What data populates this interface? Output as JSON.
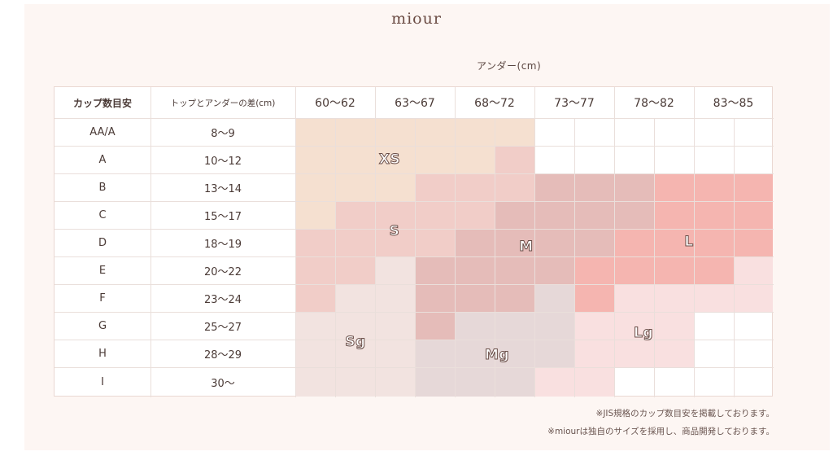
{
  "brand": "miour",
  "under_title": "アンダー(cm)",
  "headers": {
    "cup": "カップ数目安",
    "diff": "トップとアンダーの差(cm)"
  },
  "under_sizes": [
    "60〜62",
    "63〜67",
    "68〜72",
    "73〜77",
    "78〜82",
    "83〜85"
  ],
  "rows": [
    {
      "cup": "AA/A",
      "diff": "8〜9"
    },
    {
      "cup": "A",
      "diff": "10〜12"
    },
    {
      "cup": "B",
      "diff": "13〜14"
    },
    {
      "cup": "C",
      "diff": "15〜17"
    },
    {
      "cup": "D",
      "diff": "18〜19"
    },
    {
      "cup": "E",
      "diff": "20〜22"
    },
    {
      "cup": "F",
      "diff": "23〜24"
    },
    {
      "cup": "G",
      "diff": "25〜27"
    },
    {
      "cup": "H",
      "diff": "28〜29"
    },
    {
      "cup": "I",
      "diff": "30〜"
    }
  ],
  "size_labels": [
    "XS",
    "S",
    "M",
    "L",
    "Sg",
    "Mg",
    "Lg"
  ],
  "colors": {
    "XS": "#f5e0d0",
    "S": "#f1d0cc",
    "M": "#e5bdba",
    "L": "#f5b5b0",
    "Sg": "#f2e3e0",
    "Mg": "#e6d8d8",
    "Lg": "#f9e0e0"
  },
  "notes": [
    "※JIS規格のカップ数目安を掲載しております。",
    "※miourは独自のサイズを採用し、商品開発しております。"
  ]
}
